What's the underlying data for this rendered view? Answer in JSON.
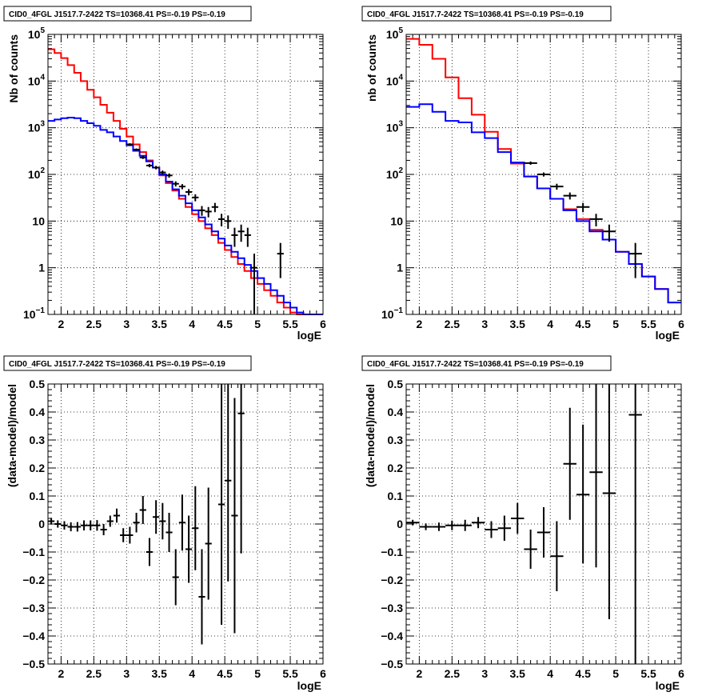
{
  "chart_data": [
    {
      "id": "counts-left",
      "type": "histogram",
      "title": "CID0_4FGL J1517.7-2422 TS=10368.41 PS=-0.19 PS=-0.19",
      "xlabel": "logE",
      "ylabel": "Nb of counts",
      "xlim": [
        1.8,
        6.0
      ],
      "ylim": [
        0.1,
        100000
      ],
      "yscale": "log",
      "grid": true,
      "xticks": [
        {
          "v": 2,
          "label": "2"
        },
        {
          "v": 2.5,
          "label": "2.5"
        },
        {
          "v": 3,
          "label": "3"
        },
        {
          "v": 3.5,
          "label": "3.5"
        },
        {
          "v": 4,
          "label": "4"
        },
        {
          "v": 4.5,
          "label": "4.5"
        },
        {
          "v": 5,
          "label": "5"
        },
        {
          "v": 5.5,
          "label": "5.5"
        },
        {
          "v": 6,
          "label": "6"
        }
      ],
      "yticks": [
        {
          "v": 0.1,
          "label": "10",
          "sup": "−1"
        },
        {
          "v": 1,
          "label": "1"
        },
        {
          "v": 10,
          "label": "10"
        },
        {
          "v": 100,
          "label": "10",
          "sup": "2"
        },
        {
          "v": 1000,
          "label": "10",
          "sup": "3"
        },
        {
          "v": 10000,
          "label": "10",
          "sup": "4"
        },
        {
          "v": 100000,
          "label": "10",
          "sup": "5"
        }
      ],
      "bin_width": 0.1,
      "bin_start": 1.8,
      "series": [
        {
          "color": "#ff0000",
          "values": [
            48000,
            40000,
            31000,
            22000,
            15000,
            10000,
            6500,
            4500,
            3100,
            2100,
            1400,
            950,
            650,
            440,
            300,
            200,
            140,
            95,
            65,
            45,
            30,
            20,
            14,
            10,
            7,
            5,
            3.4,
            2.4,
            1.7,
            1.2,
            0.85,
            0.6,
            0.45,
            0.33,
            0.25,
            0.18,
            0.14,
            0.11,
            0.095,
            0.095,
            0.095,
            0.095
          ]
        },
        {
          "color": "#0000ff",
          "values": [
            1400,
            1500,
            1600,
            1650,
            1600,
            1400,
            1250,
            1100,
            900,
            800,
            650,
            520,
            420,
            320,
            250,
            190,
            140,
            100,
            70,
            48,
            35,
            24,
            17,
            12,
            8.5,
            6,
            4.2,
            3,
            2.2,
            1.6,
            1.15,
            0.85,
            0.6,
            0.45,
            0.33,
            0.25,
            0.18,
            0.14,
            0.11,
            0.1,
            0.1,
            0.1
          ]
        }
      ],
      "points": [
        {
          "x": 3.05,
          "y": 440,
          "dy": [
            25,
            25
          ]
        },
        {
          "x": 3.15,
          "y": 340,
          "dy": [
            20,
            20
          ]
        },
        {
          "x": 3.25,
          "y": 230,
          "dy": [
            16,
            16
          ]
        },
        {
          "x": 3.35,
          "y": 155,
          "dy": [
            13,
            13
          ]
        },
        {
          "x": 3.45,
          "y": 140,
          "dy": [
            12,
            12
          ]
        },
        {
          "x": 3.55,
          "y": 110,
          "dy": [
            11,
            11
          ]
        },
        {
          "x": 3.65,
          "y": 95,
          "dy": [
            10,
            10
          ]
        },
        {
          "x": 3.75,
          "y": 63,
          "dy": [
            8,
            8
          ]
        },
        {
          "x": 3.85,
          "y": 55,
          "dy": [
            7,
            7
          ]
        },
        {
          "x": 3.95,
          "y": 42,
          "dy": [
            6.5,
            6.5
          ]
        },
        {
          "x": 4.05,
          "y": 32,
          "dy": [
            5.5,
            5.5
          ]
        },
        {
          "x": 4.15,
          "y": 17,
          "dy": [
            4,
            4
          ]
        },
        {
          "x": 4.25,
          "y": 16,
          "dy": [
            4,
            4
          ]
        },
        {
          "x": 4.35,
          "y": 20,
          "dy": [
            4.5,
            4.5
          ]
        },
        {
          "x": 4.45,
          "y": 11,
          "dy": [
            3.3,
            3.3
          ]
        },
        {
          "x": 4.55,
          "y": 10,
          "dy": [
            3.2,
            3.2
          ]
        },
        {
          "x": 4.65,
          "y": 5,
          "dy": [
            2.2,
            2.2
          ]
        },
        {
          "x": 4.75,
          "y": 6,
          "dy": [
            2.4,
            2.4
          ]
        },
        {
          "x": 4.85,
          "y": 5,
          "dy": [
            2.2,
            2.2
          ]
        },
        {
          "x": 4.95,
          "y": 1,
          "dy": [
            0.999,
            1.0
          ]
        },
        {
          "x": 5.35,
          "y": 2,
          "dy": [
            1.4,
            1.4
          ]
        }
      ]
    },
    {
      "id": "counts-right",
      "type": "histogram",
      "title": "CID0_4FGL J1517.7-2422 TS=10368.41 PS=-0.19 PS=-0.19",
      "xlabel": "logE",
      "ylabel": "nb of counts",
      "xlim": [
        1.8,
        6.0
      ],
      "ylim": [
        0.1,
        100000
      ],
      "yscale": "log",
      "grid": true,
      "xticks": [
        {
          "v": 2,
          "label": "2"
        },
        {
          "v": 2.5,
          "label": "2.5"
        },
        {
          "v": 3,
          "label": "3"
        },
        {
          "v": 3.5,
          "label": "3.5"
        },
        {
          "v": 4,
          "label": "4"
        },
        {
          "v": 4.5,
          "label": "4.5"
        },
        {
          "v": 5,
          "label": "5"
        },
        {
          "v": 5.5,
          "label": "5.5"
        },
        {
          "v": 6,
          "label": "6"
        }
      ],
      "yticks": [
        {
          "v": 0.1,
          "label": "10",
          "sup": "−1"
        },
        {
          "v": 1,
          "label": "1"
        },
        {
          "v": 10,
          "label": "10"
        },
        {
          "v": 100,
          "label": "10",
          "sup": "2"
        },
        {
          "v": 1000,
          "label": "10",
          "sup": "3"
        },
        {
          "v": 10000,
          "label": "10",
          "sup": "4"
        },
        {
          "v": 100000,
          "label": "10",
          "sup": "5"
        }
      ],
      "bin_width": 0.2,
      "bin_start": 1.8,
      "series": [
        {
          "color": "#ff0000",
          "values": [
            80000,
            60000,
            30000,
            12000,
            4300,
            1900,
            820,
            350,
            170,
            90,
            50,
            30,
            18,
            11,
            6.5,
            4,
            2.2,
            1.2,
            0.65,
            0.35,
            0.18
          ]
        },
        {
          "color": "#0000ff",
          "values": [
            2800,
            3200,
            2200,
            1400,
            1300,
            800,
            600,
            300,
            180,
            90,
            50,
            30,
            17,
            10,
            6,
            4,
            2.2,
            1.2,
            0.65,
            0.35,
            0.18
          ]
        }
      ],
      "points": [
        {
          "x": 3.7,
          "y": 175,
          "dy": [
            14,
            14
          ]
        },
        {
          "x": 3.9,
          "y": 100,
          "dy": [
            10,
            10
          ]
        },
        {
          "x": 4.1,
          "y": 55,
          "dy": [
            8,
            8
          ]
        },
        {
          "x": 4.3,
          "y": 35,
          "dy": [
            6,
            6
          ]
        },
        {
          "x": 4.5,
          "y": 20,
          "dy": [
            4.5,
            4.5
          ]
        },
        {
          "x": 4.7,
          "y": 11,
          "dy": [
            3.3,
            3.3
          ]
        },
        {
          "x": 4.9,
          "y": 6,
          "dy": [
            2.4,
            2.4
          ]
        },
        {
          "x": 5.3,
          "y": 2,
          "dy": [
            1.4,
            1.4
          ]
        }
      ]
    },
    {
      "id": "residual-left",
      "type": "scatter",
      "title": "CID0_4FGL J1517.7-2422 TS=10368.41 PS=-0.19 PS=-0.19",
      "xlabel": "logE",
      "ylabel": "(data-model)/model",
      "xlim": [
        1.8,
        6.0
      ],
      "ylim": [
        -0.5,
        0.5
      ],
      "yscale": "linear",
      "grid": true,
      "xticks": [
        {
          "v": 2,
          "label": "2"
        },
        {
          "v": 2.5,
          "label": "2.5"
        },
        {
          "v": 3,
          "label": "3"
        },
        {
          "v": 3.5,
          "label": "3.5"
        },
        {
          "v": 4,
          "label": "4"
        },
        {
          "v": 4.5,
          "label": "4.5"
        },
        {
          "v": 5,
          "label": "5"
        },
        {
          "v": 5.5,
          "label": "5.5"
        },
        {
          "v": 6,
          "label": "6"
        }
      ],
      "yticks": [
        {
          "v": -0.5,
          "label": "−0.5"
        },
        {
          "v": -0.4,
          "label": "−0.4"
        },
        {
          "v": -0.3,
          "label": "−0.3"
        },
        {
          "v": -0.2,
          "label": "−0.2"
        },
        {
          "v": -0.1,
          "label": "−0.1"
        },
        {
          "v": 0,
          "label": "0"
        },
        {
          "v": 0.1,
          "label": "0.1"
        },
        {
          "v": 0.2,
          "label": "0.2"
        },
        {
          "v": 0.3,
          "label": "0.3"
        },
        {
          "v": 0.4,
          "label": "0.4"
        },
        {
          "v": 0.5,
          "label": "0.5"
        }
      ],
      "xerr": 0.05,
      "points": [
        {
          "x": 1.85,
          "y": 0.01,
          "dy": [
            0.012,
            0.012
          ]
        },
        {
          "x": 1.95,
          "y": 0.0,
          "dy": [
            0.013,
            0.013
          ]
        },
        {
          "x": 2.05,
          "y": -0.005,
          "dy": [
            0.015,
            0.015
          ]
        },
        {
          "x": 2.15,
          "y": -0.01,
          "dy": [
            0.016,
            0.016
          ]
        },
        {
          "x": 2.25,
          "y": -0.01,
          "dy": [
            0.017,
            0.017
          ]
        },
        {
          "x": 2.35,
          "y": -0.005,
          "dy": [
            0.018,
            0.018
          ]
        },
        {
          "x": 2.45,
          "y": -0.005,
          "dy": [
            0.018,
            0.018
          ]
        },
        {
          "x": 2.55,
          "y": -0.005,
          "dy": [
            0.019,
            0.019
          ]
        },
        {
          "x": 2.65,
          "y": -0.02,
          "dy": [
            0.02,
            0.02
          ]
        },
        {
          "x": 2.75,
          "y": 0.01,
          "dy": [
            0.02,
            0.02
          ]
        },
        {
          "x": 2.85,
          "y": 0.03,
          "dy": [
            0.025,
            0.025
          ]
        },
        {
          "x": 2.95,
          "y": -0.04,
          "dy": [
            0.025,
            0.025
          ]
        },
        {
          "x": 3.05,
          "y": -0.04,
          "dy": [
            0.03,
            0.03
          ]
        },
        {
          "x": 3.15,
          "y": 0.005,
          "dy": [
            0.035,
            0.035
          ]
        },
        {
          "x": 3.25,
          "y": 0.05,
          "dy": [
            0.05,
            0.05
          ]
        },
        {
          "x": 3.35,
          "y": -0.1,
          "dy": [
            0.05,
            0.05
          ]
        },
        {
          "x": 3.45,
          "y": 0.025,
          "dy": [
            0.06,
            0.06
          ]
        },
        {
          "x": 3.55,
          "y": 0.01,
          "dy": [
            0.065,
            0.065
          ]
        },
        {
          "x": 3.65,
          "y": -0.03,
          "dy": [
            0.07,
            0.07
          ]
        },
        {
          "x": 3.75,
          "y": -0.19,
          "dy": [
            0.1,
            0.1
          ]
        },
        {
          "x": 3.85,
          "y": 0.005,
          "dy": [
            0.1,
            0.1
          ]
        },
        {
          "x": 3.95,
          "y": -0.09,
          "dy": [
            0.12,
            0.12
          ]
        },
        {
          "x": 4.05,
          "y": -0.015,
          "dy": [
            0.15,
            0.15
          ]
        },
        {
          "x": 4.15,
          "y": -0.26,
          "dy": [
            0.17,
            0.17
          ]
        },
        {
          "x": 4.25,
          "y": -0.07,
          "dy": [
            0.2,
            0.2
          ]
        },
        {
          "x": 4.45,
          "y": 0.07,
          "dy": [
            0.43,
            0.43
          ]
        },
        {
          "x": 4.55,
          "y": 0.155,
          "dy": [
            0.36,
            0.36
          ]
        },
        {
          "x": 4.65,
          "y": 0.03,
          "dy": [
            0.42,
            0.42
          ]
        },
        {
          "x": 4.75,
          "y": 0.395,
          "dy": [
            0.5,
            0.5
          ]
        }
      ]
    },
    {
      "id": "residual-right",
      "type": "scatter",
      "title": "CID0_4FGL J1517.7-2422 TS=10368.41 PS=-0.19 PS=-0.19",
      "xlabel": "logE",
      "ylabel": "(data-model)/model",
      "xlim": [
        1.8,
        6.0
      ],
      "ylim": [
        -0.5,
        0.5
      ],
      "yscale": "linear",
      "grid": true,
      "xticks": [
        {
          "v": 2,
          "label": "2"
        },
        {
          "v": 2.5,
          "label": "2.5"
        },
        {
          "v": 3,
          "label": "3"
        },
        {
          "v": 3.5,
          "label": "3.5"
        },
        {
          "v": 4,
          "label": "4"
        },
        {
          "v": 4.5,
          "label": "4.5"
        },
        {
          "v": 5,
          "label": "5"
        },
        {
          "v": 5.5,
          "label": "5.5"
        },
        {
          "v": 6,
          "label": "6"
        }
      ],
      "yticks": [
        {
          "v": -0.5,
          "label": "−0.5"
        },
        {
          "v": -0.4,
          "label": "−0.4"
        },
        {
          "v": -0.3,
          "label": "−0.3"
        },
        {
          "v": -0.2,
          "label": "−0.2"
        },
        {
          "v": -0.1,
          "label": "−0.1"
        },
        {
          "v": 0,
          "label": "0"
        },
        {
          "v": 0.1,
          "label": "0.1"
        },
        {
          "v": 0.2,
          "label": "0.2"
        },
        {
          "v": 0.3,
          "label": "0.3"
        },
        {
          "v": 0.4,
          "label": "0.4"
        },
        {
          "v": 0.5,
          "label": "0.5"
        }
      ],
      "xerr": 0.1,
      "points": [
        {
          "x": 1.9,
          "y": 0.005,
          "dy": [
            0.01,
            0.01
          ]
        },
        {
          "x": 2.1,
          "y": -0.01,
          "dy": [
            0.012,
            0.012
          ]
        },
        {
          "x": 2.3,
          "y": -0.01,
          "dy": [
            0.015,
            0.015
          ]
        },
        {
          "x": 2.5,
          "y": -0.005,
          "dy": [
            0.017,
            0.017
          ]
        },
        {
          "x": 2.7,
          "y": -0.005,
          "dy": [
            0.02,
            0.02
          ]
        },
        {
          "x": 2.9,
          "y": 0.005,
          "dy": [
            0.02,
            0.02
          ]
        },
        {
          "x": 3.1,
          "y": -0.02,
          "dy": [
            0.03,
            0.03
          ]
        },
        {
          "x": 3.3,
          "y": -0.015,
          "dy": [
            0.045,
            0.045
          ]
        },
        {
          "x": 3.5,
          "y": 0.02,
          "dy": [
            0.055,
            0.055
          ]
        },
        {
          "x": 3.7,
          "y": -0.09,
          "dy": [
            0.07,
            0.07
          ]
        },
        {
          "x": 3.9,
          "y": -0.03,
          "dy": [
            0.09,
            0.09
          ]
        },
        {
          "x": 4.1,
          "y": -0.115,
          "dy": [
            0.125,
            0.125
          ]
        },
        {
          "x": 4.3,
          "y": 0.215,
          "dy": [
            0.2,
            0.2
          ]
        },
        {
          "x": 4.5,
          "y": 0.105,
          "dy": [
            0.245,
            0.25
          ]
        },
        {
          "x": 4.7,
          "y": 0.185,
          "dy": [
            0.34,
            0.34
          ]
        },
        {
          "x": 4.9,
          "y": 0.11,
          "dy": [
            0.45,
            0.45
          ]
        },
        {
          "x": 5.3,
          "y": 0.39,
          "dy": [
            0.9,
            0.9
          ]
        }
      ]
    }
  ]
}
